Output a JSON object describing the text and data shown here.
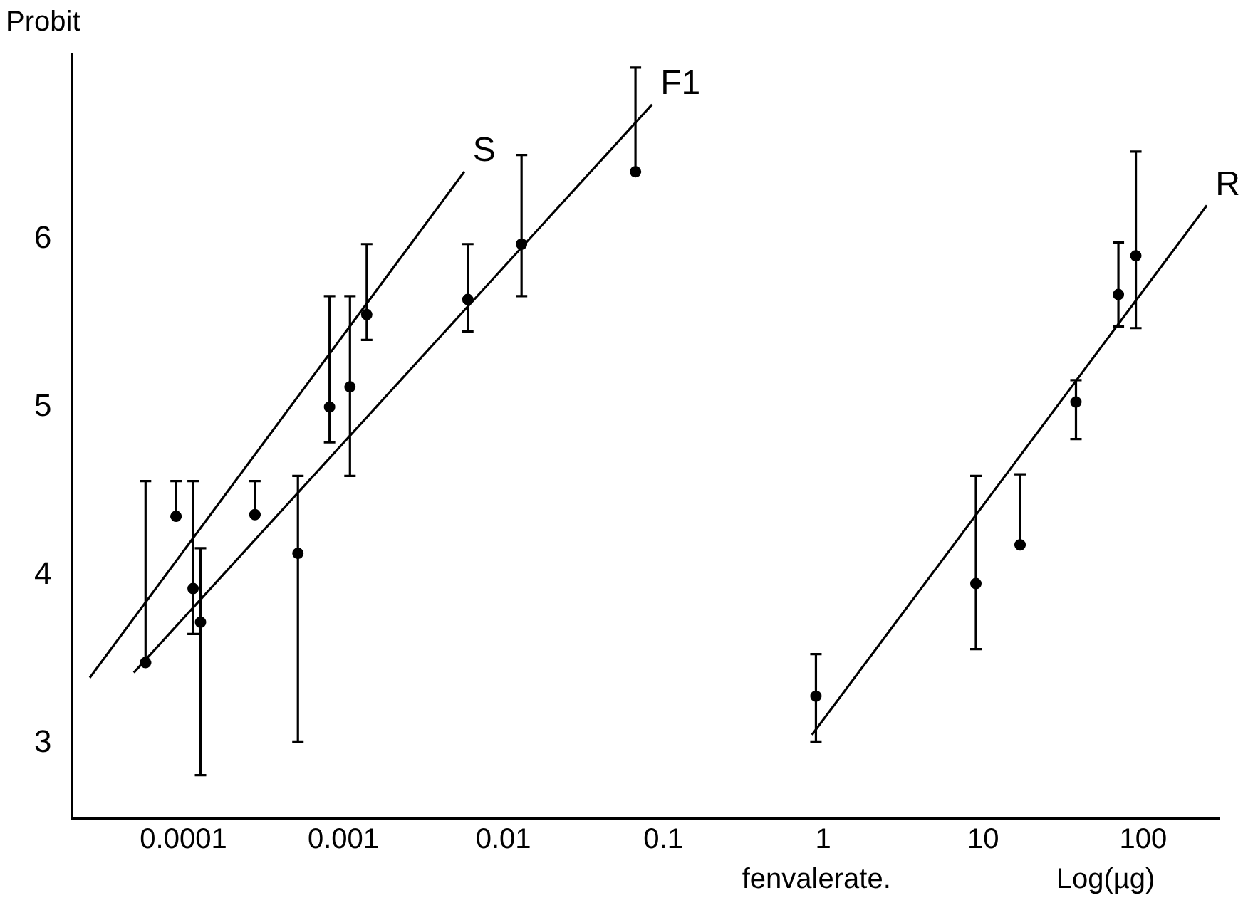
{
  "chart_data": {
    "type": "scatter",
    "ylabel": "Probit",
    "xlabel": "fenvalerate.",
    "annotations": [
      "Log(µg)"
    ],
    "log": "x",
    "xlim": [
      2e-05,
      300
    ],
    "xticks": [
      0.0001,
      0.001,
      0.01,
      0.1,
      1,
      10,
      100
    ],
    "ylim": [
      2.55,
      7.1
    ],
    "yticks": [
      3,
      4,
      5,
      6
    ],
    "grid": false,
    "legend": false,
    "series": [
      {
        "marker": "circle",
        "color": "#000000",
        "x": [
          5.8e-05,
          9e-05,
          0.000115,
          0.00028,
          0.00082,
          0.0014
        ],
        "values": [
          3.48,
          4.35,
          3.92,
          4.36,
          5.0,
          5.55
        ],
        "errors": [
          [
            3.48,
            4.56
          ],
          [
            4.35,
            4.56
          ],
          [
            3.65,
            4.56
          ],
          [
            4.36,
            4.56
          ],
          [
            4.79,
            5.66
          ],
          [
            5.4,
            5.97
          ]
        ]
      },
      {
        "marker": "circle",
        "color": "#000000",
        "x": [
          0.000128,
          0.00052,
          0.0011,
          0.006,
          0.013,
          0.067
        ],
        "values": [
          3.72,
          4.13,
          5.12,
          5.64,
          5.97,
          6.4
        ],
        "errors": [
          [
            2.81,
            4.16
          ],
          [
            3.01,
            4.59
          ],
          [
            4.59,
            5.66
          ],
          [
            5.45,
            5.97
          ],
          [
            5.66,
            6.5
          ],
          [
            6.4,
            7.02
          ]
        ]
      },
      {
        "marker": "circle",
        "color": "#000000",
        "x": [
          0.9,
          9,
          17,
          38,
          70,
          90
        ],
        "values": [
          3.28,
          3.95,
          4.18,
          5.03,
          5.67,
          5.9
        ],
        "errors": [
          [
            3.01,
            3.53
          ],
          [
            3.56,
            4.59
          ],
          [
            4.18,
            4.6
          ],
          [
            4.81,
            5.16
          ],
          [
            5.48,
            5.98
          ],
          [
            5.47,
            6.52
          ]
        ]
      },
      {
        "type": "line",
        "name": "S",
        "color": "#000000",
        "line_style": "solid",
        "x": [
          2.6e-05,
          0.0057
        ],
        "values": [
          3.39,
          6.4
        ]
      },
      {
        "type": "line",
        "name": "F1",
        "color": "#000000",
        "line_style": "solid",
        "x": [
          4.9e-05,
          0.085
        ],
        "values": [
          3.42,
          6.8
        ]
      },
      {
        "type": "line",
        "name": "R",
        "color": "#000000",
        "line_style": "solid",
        "x": [
          0.85,
          250
        ],
        "values": [
          3.05,
          6.2
        ]
      }
    ]
  }
}
